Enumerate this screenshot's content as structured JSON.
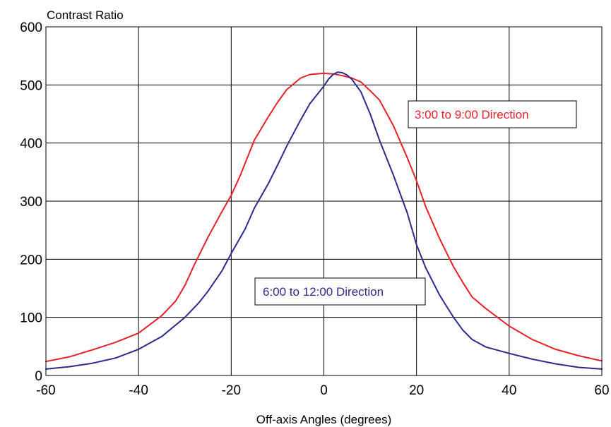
{
  "chart_data": {
    "type": "line",
    "title": "",
    "xlabel": "Off-axis Angles (degrees)",
    "ylabel": "Contrast Ratio",
    "xlim": [
      -60,
      60
    ],
    "ylim": [
      0,
      600
    ],
    "xticks": [
      -60,
      -40,
      -20,
      0,
      20,
      40,
      60
    ],
    "yticks": [
      0,
      100,
      200,
      300,
      400,
      500,
      600
    ],
    "grid": true,
    "series": [
      {
        "name": "3:00 to 9:00 Direction",
        "color": "#e8202a",
        "x": [
          -60,
          -55,
          -50,
          -45,
          -40,
          -35,
          -32,
          -30,
          -28,
          -25,
          -22,
          -20,
          -18,
          -15,
          -12,
          -10,
          -8,
          -5,
          -3,
          0,
          2,
          4,
          6,
          8,
          10,
          12,
          15,
          18,
          20,
          22,
          25,
          28,
          30,
          32,
          35,
          40,
          45,
          50,
          55,
          60
        ],
        "y": [
          24,
          32,
          44,
          57,
          73,
          103,
          128,
          155,
          190,
          238,
          282,
          310,
          345,
          405,
          445,
          470,
          492,
          512,
          518,
          520,
          519,
          516,
          512,
          505,
          490,
          474,
          430,
          375,
          335,
          290,
          235,
          187,
          160,
          135,
          115,
          85,
          62,
          45,
          34,
          25
        ]
      },
      {
        "name": "6:00 to 12:00 Direction",
        "color": "#2b2b8e",
        "x": [
          -60,
          -55,
          -50,
          -45,
          -40,
          -35,
          -30,
          -27,
          -25,
          -22,
          -20,
          -17,
          -15,
          -12,
          -10,
          -8,
          -5,
          -3,
          0,
          1,
          2,
          3,
          4,
          5,
          6,
          8,
          10,
          12,
          15,
          18,
          20,
          22,
          25,
          28,
          30,
          32,
          35,
          40,
          45,
          50,
          55,
          60
        ],
        "y": [
          11,
          15,
          21,
          30,
          45,
          67,
          100,
          125,
          145,
          180,
          210,
          252,
          288,
          330,
          362,
          395,
          440,
          468,
          498,
          510,
          518,
          522,
          521,
          517,
          510,
          488,
          450,
          405,
          345,
          280,
          225,
          185,
          138,
          100,
          78,
          62,
          49,
          38,
          28,
          20,
          14,
          11
        ]
      }
    ],
    "annotations": [
      {
        "text": "3:00 to 9:00 Direction",
        "color": "#e8202a"
      },
      {
        "text": "6:00 to 12:00 Direction",
        "color": "#2b2b8e"
      }
    ]
  }
}
